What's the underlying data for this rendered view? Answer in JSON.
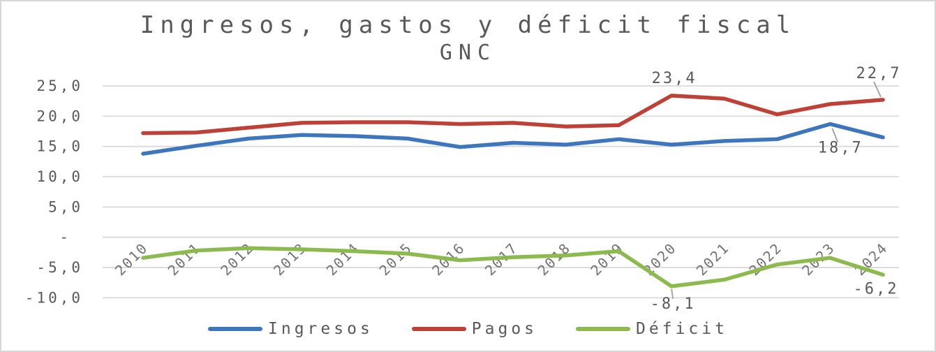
{
  "title": "Ingresos, gastos y déficit fiscal",
  "subtitle": "GNC",
  "colors": {
    "ingresos": "#3D76BD",
    "pagos": "#BE4137",
    "deficit": "#8DBA4E",
    "text": "#595959",
    "gridline": "#D9D9D9",
    "frame_border": "#D6D6D6"
  },
  "chart_data": {
    "type": "line",
    "x": [
      2010,
      2011,
      2012,
      2013,
      2014,
      2015,
      2016,
      2017,
      2018,
      2019,
      2020,
      2021,
      2022,
      2023,
      2024
    ],
    "x_tick_labels": [
      "2010",
      "2011",
      "2012",
      "2013",
      "2014",
      "2015",
      "2016",
      "2017",
      "2018",
      "2019",
      "2020",
      "2021",
      "2022",
      "2023",
      "2024"
    ],
    "series": [
      {
        "name": "Ingresos",
        "color": "#3D76BD",
        "values": [
          13.8,
          15.1,
          16.3,
          16.9,
          16.7,
          16.3,
          14.9,
          15.6,
          15.3,
          16.2,
          15.3,
          15.9,
          16.2,
          18.7,
          16.5
        ]
      },
      {
        "name": "Pagos",
        "color": "#BE4137",
        "values": [
          17.2,
          17.3,
          18.1,
          18.9,
          19.0,
          19.0,
          18.7,
          18.9,
          18.3,
          18.5,
          23.4,
          22.9,
          20.3,
          22.0,
          22.7
        ]
      },
      {
        "name": "Déficit",
        "color": "#8DBA4E",
        "values": [
          -3.4,
          -2.2,
          -1.8,
          -2.0,
          -2.3,
          -2.7,
          -3.8,
          -3.3,
          -3.0,
          -2.3,
          -8.1,
          -7.0,
          -4.5,
          -3.4,
          -6.2
        ]
      }
    ],
    "y_ticks": [
      25,
      20,
      15,
      10,
      5,
      0,
      -5,
      -10
    ],
    "y_tick_labels": [
      "25,0",
      "20,0",
      "15,0",
      "10,0",
      "5,0",
      "-",
      "-5,0",
      "-10,0"
    ],
    "ylim": [
      -10,
      25
    ],
    "grid": true,
    "legend_position": "bottom",
    "annotations": [
      {
        "series": "Pagos",
        "year": 2020,
        "label": "23,4"
      },
      {
        "series": "Pagos",
        "year": 2024,
        "label": "22,7"
      },
      {
        "series": "Ingresos",
        "year": 2023,
        "label": "18,7"
      },
      {
        "series": "Déficit",
        "year": 2020,
        "label": "-8,1"
      },
      {
        "series": "Déficit",
        "year": 2024,
        "label": "-6,2"
      }
    ]
  },
  "legend": {
    "items": [
      {
        "label": "Ingresos"
      },
      {
        "label": "Pagos"
      },
      {
        "label": "Déficit"
      }
    ]
  }
}
